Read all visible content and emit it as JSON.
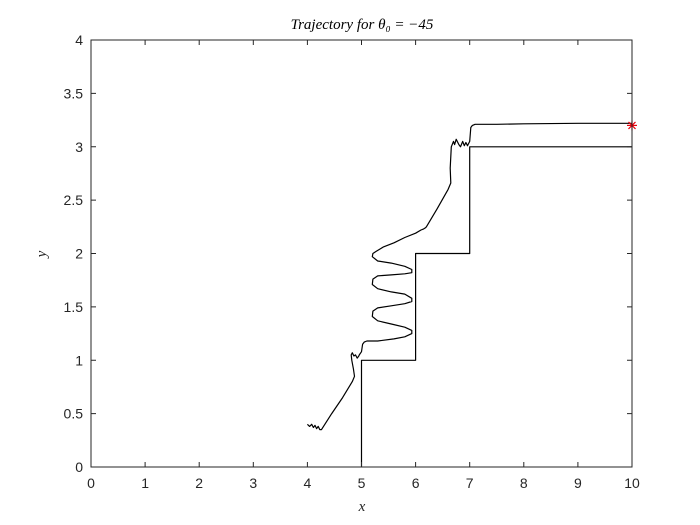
{
  "chart_data": {
    "type": "line",
    "title": "Trajectory for θ₀ = −45",
    "xlabel": "x",
    "ylabel": "y",
    "xlim": [
      0,
      10
    ],
    "ylim": [
      0,
      4
    ],
    "xticks": [
      0,
      1,
      2,
      3,
      4,
      5,
      6,
      7,
      8,
      9,
      10
    ],
    "xtick_labels": [
      "0",
      "1",
      "2",
      "3",
      "4",
      "5",
      "6",
      "7",
      "8",
      "9",
      "10"
    ],
    "yticks": [
      0,
      0.5,
      1,
      1.5,
      2,
      2.5,
      3,
      3.5,
      4
    ],
    "ytick_labels": [
      "0",
      "0.5",
      "1",
      "1.5",
      "2",
      "2.5",
      "3",
      "3.5",
      "4"
    ],
    "grid": false,
    "colors": {
      "line": "#000000",
      "marker": "#e8000b",
      "axes": "#262626"
    },
    "series": [
      {
        "style": "step-boundary",
        "x": [
          5,
          5,
          6,
          6,
          7,
          7,
          10
        ],
        "y": [
          0,
          1,
          1,
          2,
          2,
          3,
          3
        ]
      },
      {
        "style": "trajectory",
        "x": [
          4.0,
          4.04,
          4.08,
          4.11,
          4.14,
          4.17,
          4.2,
          4.23,
          4.26,
          4.45,
          4.65,
          4.83,
          4.87,
          4.85,
          4.82,
          4.81,
          4.83,
          4.86,
          4.89,
          4.92,
          4.95,
          4.96,
          5.0,
          5.02,
          5.05,
          5.1,
          5.3,
          5.6,
          5.8,
          5.93,
          5.93,
          5.8,
          5.55,
          5.3,
          5.2,
          5.21,
          5.3,
          5.55,
          5.8,
          5.93,
          5.93,
          5.8,
          5.55,
          5.3,
          5.2,
          5.21,
          5.3,
          5.55,
          5.8,
          5.93,
          5.93,
          5.8,
          5.55,
          5.3,
          5.2,
          5.21,
          5.27,
          5.4,
          5.6,
          5.8,
          6.0,
          6.1,
          6.15,
          6.18,
          6.2,
          6.4,
          6.6,
          6.65,
          6.64,
          6.66,
          6.7,
          6.72,
          6.75,
          6.8,
          6.83,
          6.87,
          6.9,
          6.93,
          6.96,
          6.98,
          7.0,
          7.02,
          7.05,
          7.1,
          7.5,
          8.0,
          9.0,
          10.0
        ],
        "y": [
          0.4,
          0.38,
          0.4,
          0.37,
          0.39,
          0.36,
          0.38,
          0.35,
          0.35,
          0.5,
          0.65,
          0.8,
          0.85,
          0.92,
          1.0,
          1.05,
          1.07,
          1.04,
          1.05,
          1.02,
          1.04,
          1.05,
          1.08,
          1.15,
          1.17,
          1.18,
          1.18,
          1.2,
          1.22,
          1.25,
          1.28,
          1.31,
          1.34,
          1.37,
          1.41,
          1.46,
          1.49,
          1.51,
          1.53,
          1.55,
          1.58,
          1.62,
          1.64,
          1.67,
          1.71,
          1.76,
          1.79,
          1.8,
          1.81,
          1.82,
          1.85,
          1.88,
          1.91,
          1.93,
          1.97,
          2.0,
          2.02,
          2.06,
          2.1,
          2.15,
          2.19,
          2.22,
          2.23,
          2.24,
          2.25,
          2.42,
          2.6,
          2.66,
          2.8,
          3.0,
          3.05,
          3.02,
          3.07,
          3.02,
          3.0,
          3.05,
          3.01,
          3.04,
          3.01,
          3.03,
          3.05,
          3.18,
          3.2,
          3.21,
          3.21,
          3.215,
          3.22,
          3.22
        ]
      }
    ],
    "marker_points": [
      {
        "x": 10,
        "y": 3.2,
        "symbol": "asterisk"
      }
    ]
  }
}
